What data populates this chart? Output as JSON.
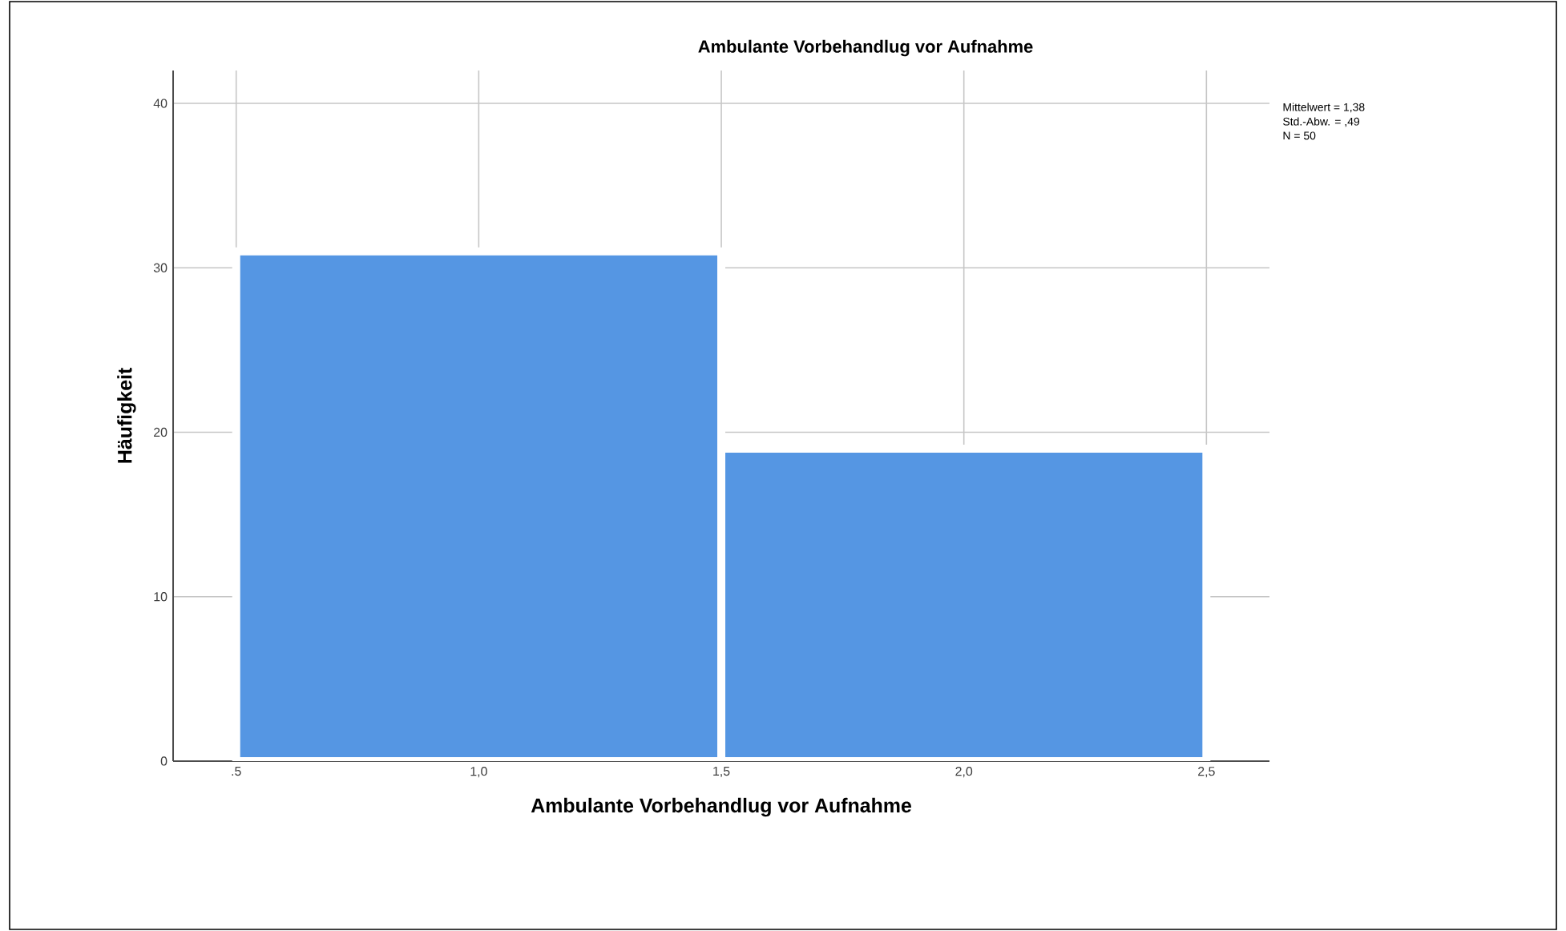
{
  "chart_data": {
    "type": "histogram",
    "title": "Ambulante Vorbehandlug vor Aufnahme",
    "xlabel": "Ambulante Vorbehandlug vor Aufnahme",
    "ylabel": "Häufigkeit",
    "bins": [
      0.5,
      1.5,
      2.5
    ],
    "values": [
      31,
      19
    ],
    "color": "#5596e3",
    "xlim": [
      0.37,
      2.63
    ],
    "ylim": [
      0,
      42
    ],
    "xticks": [
      {
        "value": 0.5,
        "label": ".5"
      },
      {
        "value": 1.0,
        "label": "1,0"
      },
      {
        "value": 1.5,
        "label": "1,5"
      },
      {
        "value": 2.0,
        "label": "2,0"
      },
      {
        "value": 2.5,
        "label": "2,5"
      }
    ],
    "yticks": [
      0,
      10,
      20,
      30,
      40
    ],
    "grid": true,
    "annotations": [
      "Mittelwert = 1,38",
      "Std.-Abw. = ,49",
      "N = 50"
    ]
  }
}
